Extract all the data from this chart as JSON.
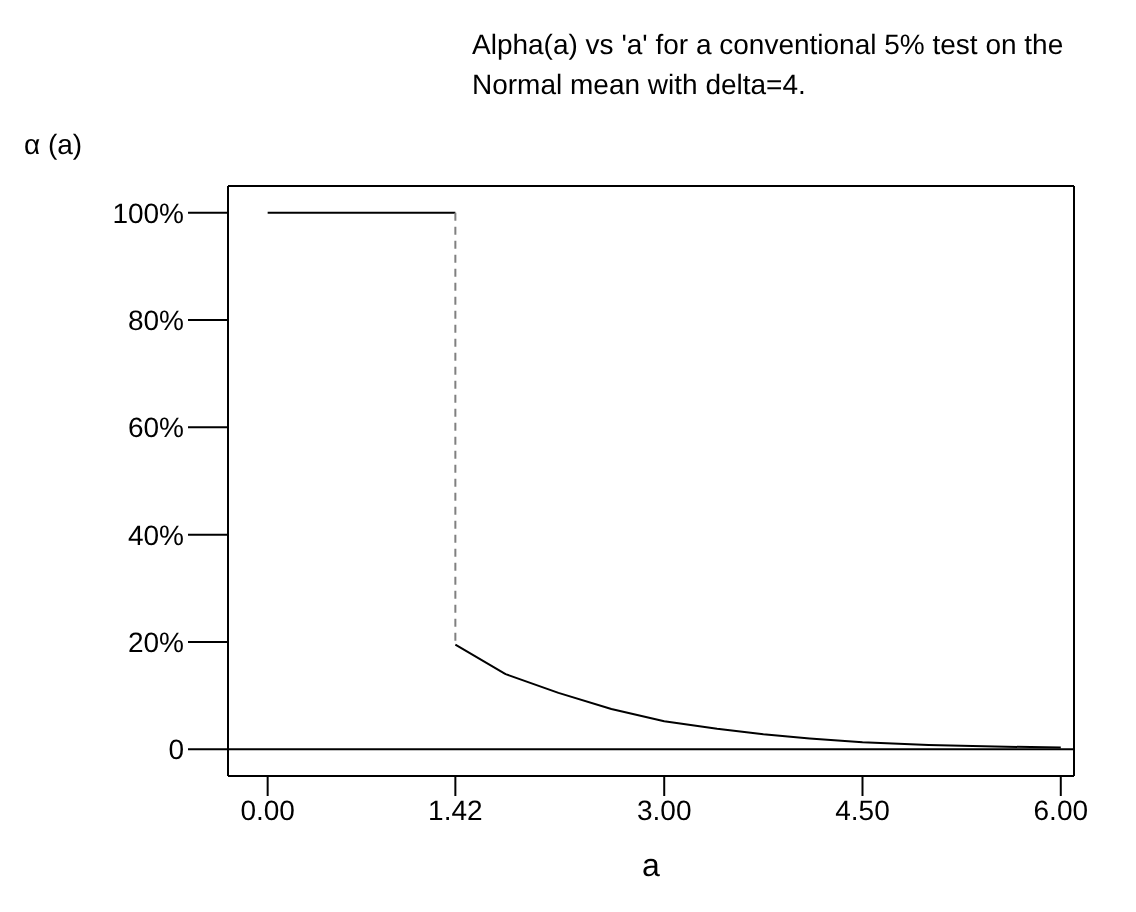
{
  "chart_data": {
    "type": "line",
    "title": "Alpha(a) vs 'a' for a conventional 5% test on the Normal mean with delta=4.",
    "xlabel": "a",
    "ylabel": "α (a)",
    "series": [
      {
        "color": "#000000",
        "line_style": "solid",
        "x": [
          0,
          1.42
        ],
        "values": [
          100,
          100
        ]
      },
      {
        "color": "#808080",
        "line_style": "dashed",
        "x": [
          1.42,
          1.42
        ],
        "values": [
          100,
          19.5
        ]
      },
      {
        "color": "#000000",
        "line_style": "solid",
        "x": [
          1.42,
          1.8,
          2.2,
          2.6,
          3,
          3.4,
          3.75,
          4.1,
          4.5,
          5,
          5.5,
          6
        ],
        "values": [
          19.5,
          14,
          10.5,
          7.5,
          5.2,
          3.8,
          2.8,
          2,
          1.3,
          0.8,
          0.5,
          0.3
        ]
      }
    ],
    "xlim": [
      -0.3,
      6.1
    ],
    "ylim": [
      -5,
      105
    ],
    "xticks": [
      {
        "value": 0,
        "label": "0.00"
      },
      {
        "value": 1.42,
        "label": "1.42"
      },
      {
        "value": 3,
        "label": "3.00"
      },
      {
        "value": 4.5,
        "label": "4.50"
      },
      {
        "value": 6,
        "label": "6.00"
      }
    ],
    "yticks": [
      {
        "value": 0,
        "label": "0"
      },
      {
        "value": 20,
        "label": "20%"
      },
      {
        "value": 40,
        "label": "40%"
      },
      {
        "value": 60,
        "label": "60%"
      },
      {
        "value": 80,
        "label": "80%"
      },
      {
        "value": 100,
        "label": "100%"
      }
    ],
    "ref_lines": [
      {
        "axis": "y",
        "value": 0,
        "color": "#000000"
      }
    ],
    "marker": "none"
  }
}
